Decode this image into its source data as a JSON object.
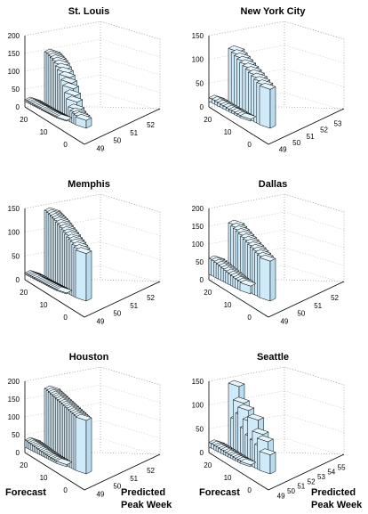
{
  "figure": {
    "bottom_left_label": "Forecast",
    "bottom_right_label_line1": "Predicted",
    "bottom_right_label_line2": "Peak Week"
  },
  "chart_data": [
    {
      "type": "bar3d",
      "title": "St. Louis",
      "zlim": [
        0,
        200
      ],
      "z_ticks": [
        "200",
        "150",
        "100",
        "50",
        "0"
      ],
      "forecast_ticks": [
        "20",
        "10",
        "0"
      ],
      "week_ticks": [
        "49",
        "50",
        "51",
        "52"
      ],
      "peak_week_values": [
        160,
        158,
        155,
        152,
        148,
        143,
        136,
        128,
        118,
        105,
        92,
        75,
        60,
        40,
        32,
        28,
        26,
        22
      ],
      "ridge_values": [
        5,
        5,
        4,
        4,
        4,
        3,
        3,
        3,
        3,
        2,
        2,
        2,
        2,
        2,
        2,
        2,
        2,
        2
      ],
      "color": "#cfeaf9"
    },
    {
      "type": "bar3d",
      "title": "New York City",
      "zlim": [
        0,
        150
      ],
      "z_ticks": [
        "150",
        "100",
        "50",
        "0"
      ],
      "forecast_ticks": [
        "20",
        "10",
        "0"
      ],
      "week_ticks": [
        "49",
        "50",
        "51",
        "52",
        "53"
      ],
      "peak_week_values": [
        127,
        122,
        118,
        114,
        110,
        106,
        102,
        98,
        94,
        90,
        86,
        82
      ],
      "ridge_values": [
        8,
        8,
        7,
        7,
        6,
        6,
        5,
        5,
        5,
        4,
        4,
        4
      ],
      "color": "#cfeaf9"
    },
    {
      "type": "bar3d",
      "title": "Memphis",
      "zlim": [
        0,
        150
      ],
      "z_ticks": [
        "150",
        "100",
        "50",
        "0"
      ],
      "forecast_ticks": [
        "20",
        "10",
        "0"
      ],
      "week_ticks": [
        "49",
        "50",
        "51",
        "52"
      ],
      "peak_week_values": [
        150,
        148,
        146,
        144,
        142,
        140,
        137,
        134,
        131,
        128,
        125,
        122,
        118,
        115,
        112,
        108,
        104,
        100
      ],
      "ridge_values": [
        3,
        3,
        3,
        3,
        3,
        2,
        2,
        2,
        2,
        2,
        2,
        2,
        2,
        2,
        2,
        2,
        2,
        2
      ],
      "color": "#cfeaf9"
    },
    {
      "type": "bar3d",
      "title": "Dallas",
      "zlim": [
        0,
        200
      ],
      "z_ticks": [
        "200",
        "150",
        "100",
        "50",
        "0"
      ],
      "forecast_ticks": [
        "20",
        "10",
        "0"
      ],
      "week_ticks": [
        "49",
        "50",
        "51",
        "52"
      ],
      "peak_week_values": [
        165,
        160,
        156,
        152,
        148,
        144,
        140,
        136,
        132,
        128,
        124,
        120,
        116,
        112
      ],
      "ridge_values": [
        45,
        44,
        42,
        40,
        38,
        36,
        34,
        32,
        30,
        28,
        26,
        25,
        24,
        22
      ],
      "color": "#cfeaf9"
    },
    {
      "type": "bar3d",
      "title": "Houston",
      "zlim": [
        0,
        200
      ],
      "z_ticks": [
        "200",
        "150",
        "100",
        "50",
        "0"
      ],
      "forecast_ticks": [
        "20",
        "10",
        "0"
      ],
      "week_ticks": [
        "49",
        "50",
        "51",
        "52"
      ],
      "peak_week_values": [
        185,
        182,
        180,
        178,
        176,
        174,
        172,
        170,
        168,
        166,
        164,
        162,
        160,
        158,
        156,
        154,
        152,
        150
      ],
      "ridge_values": [
        20,
        19,
        18,
        17,
        16,
        15,
        14,
        13,
        12,
        11,
        10,
        9,
        8,
        8,
        7,
        7,
        6,
        6
      ],
      "color": "#cfeaf9"
    },
    {
      "type": "bar3d",
      "title": "Seattle",
      "zlim": [
        0,
        150
      ],
      "z_ticks": [
        "150",
        "100",
        "50",
        "0"
      ],
      "forecast_ticks": [
        "20",
        "10",
        "0"
      ],
      "week_ticks": [
        "49",
        "50",
        "51",
        "52",
        "53",
        "54",
        "55"
      ],
      "peak_week_values": [
        150,
        80,
        120,
        95,
        110,
        70,
        90,
        60,
        100,
        55,
        75,
        50,
        65,
        40
      ],
      "ridge_values": [
        10,
        10,
        9,
        9,
        8,
        8,
        7,
        7,
        6,
        6,
        5,
        5,
        5,
        4
      ],
      "color": "#cfeaf9"
    }
  ]
}
